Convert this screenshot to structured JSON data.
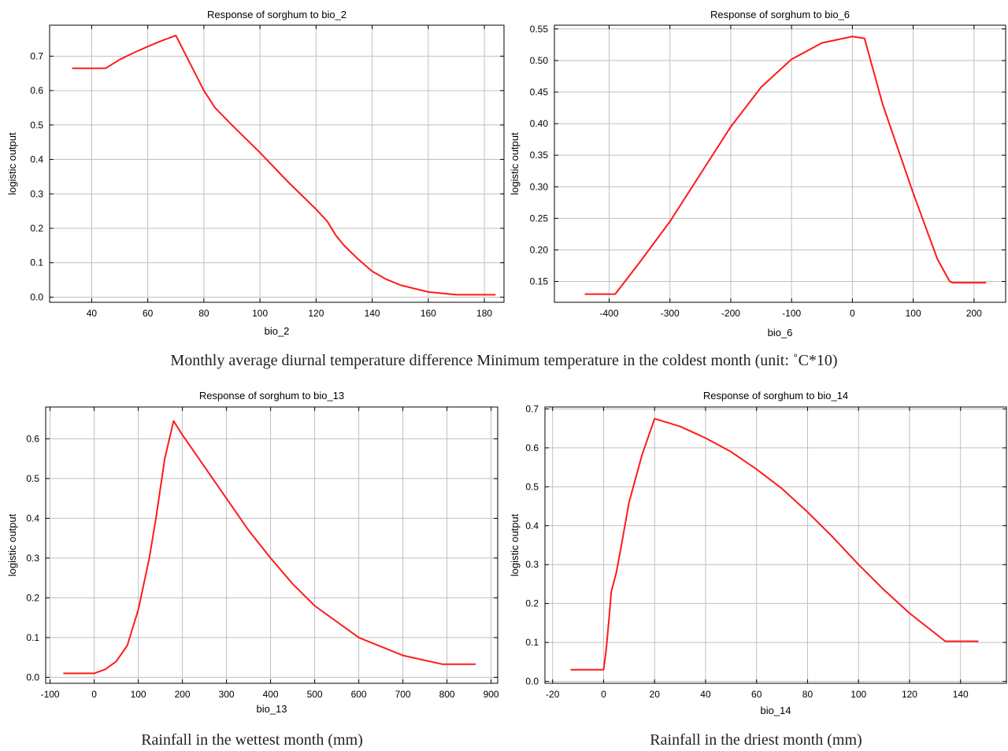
{
  "captions": {
    "top_row": "Monthly average diurnal temperature difference Minimum temperature in the coldest month (unit: ˚C*10)",
    "bottom_left": "Rainfall in the wettest month (mm)",
    "bottom_right": "Rainfall in the driest month (mm)"
  },
  "colors": {
    "curve": "#ff1a1a",
    "grid": "#c0c0c0",
    "axis": "#000000"
  },
  "chart_data": [
    {
      "type": "line",
      "title": "Response of sorghum to bio_2",
      "xlabel": "bio_2",
      "ylabel": "logistic output",
      "xlim": [
        25,
        187
      ],
      "ylim": [
        -0.015,
        0.79
      ],
      "xticks": [
        40,
        60,
        80,
        100,
        120,
        140,
        160,
        180
      ],
      "yticks": [
        0.0,
        0.1,
        0.2,
        0.3,
        0.4,
        0.5,
        0.6,
        0.7
      ],
      "ytick_labels": [
        "0.0",
        "0.1",
        "0.2",
        "0.3",
        "0.4",
        "0.5",
        "0.6",
        "0.7"
      ],
      "grid": true,
      "x": [
        33,
        45,
        50,
        55,
        60,
        65,
        70,
        75,
        80,
        84,
        90,
        100,
        110,
        120,
        124,
        127,
        130,
        135,
        140,
        145,
        150,
        160,
        170,
        184
      ],
      "y": [
        0.665,
        0.665,
        0.69,
        0.71,
        0.728,
        0.745,
        0.76,
        0.68,
        0.6,
        0.55,
        0.5,
        0.42,
        0.335,
        0.255,
        0.22,
        0.18,
        0.15,
        0.11,
        0.075,
        0.052,
        0.035,
        0.015,
        0.007,
        0.007
      ]
    },
    {
      "type": "line",
      "title": "Response of sorghum to bio_6",
      "xlabel": "bio_6",
      "ylabel": "logistic output",
      "xlim": [
        -490,
        252
      ],
      "ylim": [
        0.117,
        0.556
      ],
      "xticks": [
        -400,
        -300,
        -200,
        -100,
        0,
        100,
        200
      ],
      "yticks": [
        0.15,
        0.2,
        0.25,
        0.3,
        0.35,
        0.4,
        0.45,
        0.5,
        0.55
      ],
      "ytick_labels": [
        "0.15",
        "0.20",
        "0.25",
        "0.30",
        "0.35",
        "0.40",
        "0.45",
        "0.50",
        "0.55"
      ],
      "grid": true,
      "x": [
        -440,
        -390,
        -370,
        -350,
        -300,
        -250,
        -200,
        -150,
        -100,
        -50,
        0,
        20,
        50,
        100,
        140,
        160,
        165,
        220
      ],
      "y": [
        0.13,
        0.13,
        0.155,
        0.18,
        0.245,
        0.32,
        0.395,
        0.458,
        0.502,
        0.528,
        0.538,
        0.535,
        0.43,
        0.29,
        0.185,
        0.15,
        0.148,
        0.148
      ]
    },
    {
      "type": "line",
      "title": "Response of sorghum to bio_13",
      "xlabel": "bio_13",
      "ylabel": "logistic output",
      "xlim": [
        -110,
        915
      ],
      "ylim": [
        -0.015,
        0.68
      ],
      "xticks": [
        -100,
        0,
        100,
        200,
        300,
        400,
        500,
        600,
        700,
        800,
        900
      ],
      "yticks": [
        0.0,
        0.1,
        0.2,
        0.3,
        0.4,
        0.5,
        0.6
      ],
      "ytick_labels": [
        "0.0",
        "0.1",
        "0.2",
        "0.3",
        "0.4",
        "0.5",
        "0.6"
      ],
      "grid": true,
      "x": [
        -70,
        0,
        25,
        50,
        75,
        100,
        125,
        140,
        160,
        180,
        200,
        250,
        300,
        350,
        400,
        450,
        500,
        600,
        700,
        790,
        865
      ],
      "y": [
        0.01,
        0.01,
        0.02,
        0.04,
        0.08,
        0.17,
        0.3,
        0.4,
        0.55,
        0.645,
        0.61,
        0.53,
        0.45,
        0.37,
        0.3,
        0.235,
        0.18,
        0.1,
        0.055,
        0.033,
        0.033
      ]
    },
    {
      "type": "line",
      "title": "Response of sorghum to bio_14",
      "xlabel": "bio_14",
      "ylabel": "logistic output",
      "xlim": [
        -23,
        158
      ],
      "ylim": [
        -0.005,
        0.705
      ],
      "xticks": [
        -20,
        0,
        20,
        40,
        60,
        80,
        100,
        120,
        140
      ],
      "yticks": [
        0.0,
        0.1,
        0.2,
        0.3,
        0.4,
        0.5,
        0.6,
        0.7
      ],
      "ytick_labels": [
        "0.0",
        "0.1",
        "0.2",
        "0.3",
        "0.4",
        "0.5",
        "0.6",
        "0.7"
      ],
      "grid": true,
      "x": [
        -13,
        0,
        1,
        2,
        3,
        5,
        7,
        10,
        15,
        20,
        30,
        40,
        50,
        60,
        70,
        80,
        90,
        100,
        110,
        120,
        134,
        147
      ],
      "y": [
        0.03,
        0.03,
        0.08,
        0.15,
        0.23,
        0.28,
        0.35,
        0.46,
        0.58,
        0.675,
        0.655,
        0.625,
        0.59,
        0.545,
        0.495,
        0.435,
        0.37,
        0.3,
        0.235,
        0.175,
        0.103,
        0.103
      ]
    }
  ]
}
